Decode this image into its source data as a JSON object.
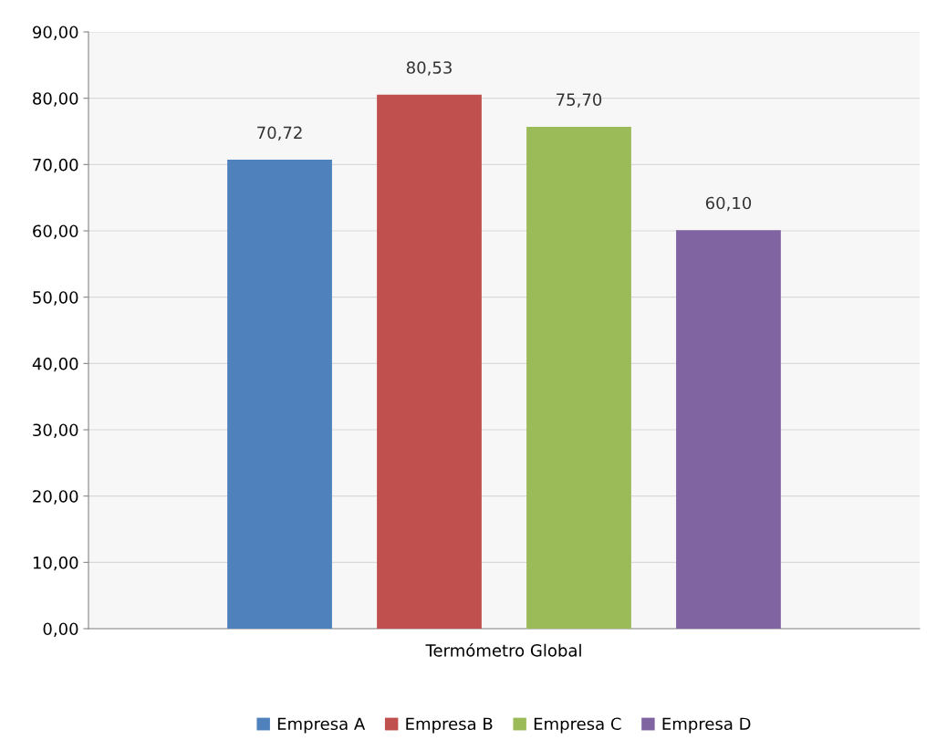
{
  "chart_data": {
    "type": "bar",
    "categories": [
      "Termómetro Global"
    ],
    "series": [
      {
        "name": "Empresa A",
        "color": "#4f81bd",
        "values": [
          70.72
        ],
        "value_labels": [
          "70,72"
        ]
      },
      {
        "name": "Empresa B",
        "color": "#c0504d",
        "values": [
          80.53
        ],
        "value_labels": [
          "80,53"
        ]
      },
      {
        "name": "Empresa C",
        "color": "#9bbb59",
        "values": [
          75.7
        ],
        "value_labels": [
          "75,70"
        ]
      },
      {
        "name": "Empresa D",
        "color": "#8064a2",
        "values": [
          60.1
        ],
        "value_labels": [
          "60,10"
        ]
      }
    ],
    "ylim": [
      0,
      90
    ],
    "yticks": [
      {
        "value": 0,
        "label": "0,00"
      },
      {
        "value": 10,
        "label": "10,00"
      },
      {
        "value": 20,
        "label": "20,00"
      },
      {
        "value": 30,
        "label": "30,00"
      },
      {
        "value": 40,
        "label": "40,00"
      },
      {
        "value": 50,
        "label": "50,00"
      },
      {
        "value": 60,
        "label": "60,00"
      },
      {
        "value": 70,
        "label": "70,00"
      },
      {
        "value": 80,
        "label": "80,00"
      },
      {
        "value": 90,
        "label": "90,00"
      }
    ],
    "grid": "y",
    "legend": "bottom"
  }
}
